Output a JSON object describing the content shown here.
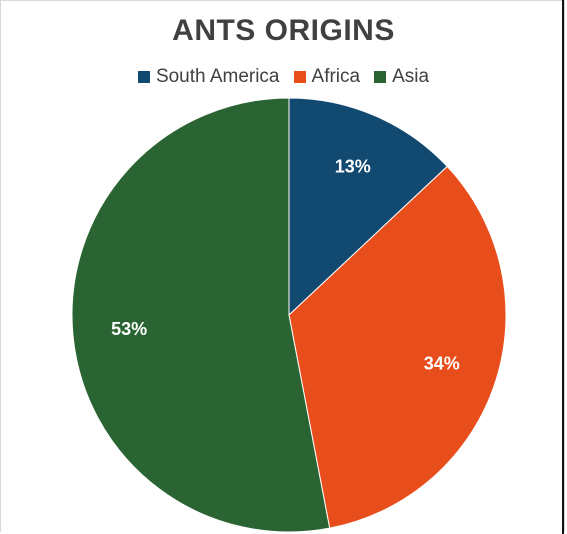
{
  "chart_data": {
    "type": "pie",
    "title": "ANTS ORIGINS",
    "legend_position": "top",
    "slices": [
      {
        "label": "South America",
        "value": 13,
        "display": "13%",
        "color": "#114970"
      },
      {
        "label": "Africa",
        "value": 34,
        "display": "34%",
        "color": "#e84d1c"
      },
      {
        "label": "Asia",
        "value": 53,
        "display": "53%",
        "color": "#2b6433"
      }
    ]
  }
}
